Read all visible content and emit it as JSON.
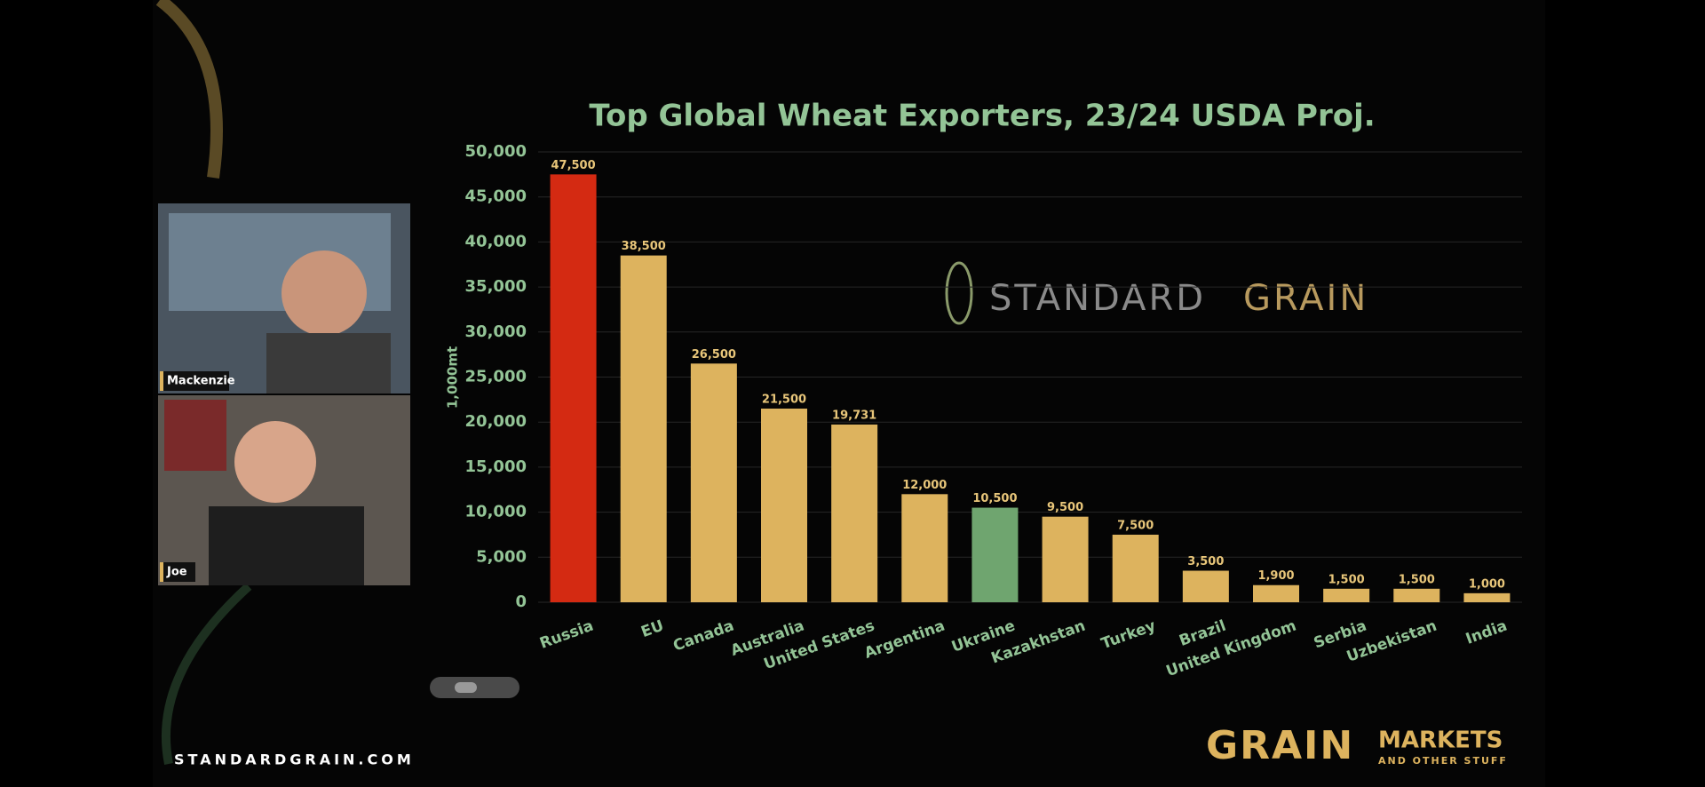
{
  "chart_data": {
    "type": "bar",
    "title": "Top Global Wheat Exporters, 23/24 USDA Proj.",
    "y_label": "1,000mt",
    "categories": [
      "Russia",
      "EU",
      "Canada",
      "Australia",
      "United States",
      "Argentina",
      "Ukraine",
      "Kazakhstan",
      "Turkey",
      "Brazil",
      "United Kingdom",
      "Serbia",
      "Uzbekistan",
      "India"
    ],
    "values": [
      47500,
      38500,
      26500,
      21500,
      19731,
      12000,
      10500,
      9500,
      7500,
      3500,
      1900,
      1500,
      1500,
      1000
    ],
    "value_labels": [
      "47,500",
      "38,500",
      "26,500",
      "21,500",
      "19,731",
      "12,000",
      "10,500",
      "9,500",
      "7,500",
      "3,500",
      "1,900",
      "1,500",
      "1,500",
      "1,000"
    ],
    "colors": [
      "#d42a12",
      "#ddb35e",
      "#ddb35e",
      "#ddb35e",
      "#ddb35e",
      "#ddb35e",
      "#6fa56f",
      "#ddb35e",
      "#ddb35e",
      "#ddb35e",
      "#ddb35e",
      "#ddb35e",
      "#ddb35e",
      "#ddb35e"
    ],
    "ylim": [
      0,
      50000
    ],
    "yticks": [
      0,
      {
        "value": 5000,
        "label": "5,000"
      },
      {
        "value": 10000,
        "label": "10,000"
      },
      {
        "value": 15000,
        "label": "15,000"
      },
      {
        "value": 20000,
        "label": "20,000"
      },
      {
        "value": 25000,
        "label": "25,000"
      },
      {
        "value": 30000,
        "label": "30,000"
      },
      {
        "value": 35000,
        "label": "35,000"
      },
      {
        "value": 40000,
        "label": "40,000"
      },
      {
        "value": 45000,
        "label": "45,000"
      },
      {
        "value": 50000,
        "label": "50,000"
      }
    ],
    "grid": true
  },
  "watermark": {
    "left": "STANDARD",
    "right": "GRAIN"
  },
  "participants": [
    "Mackenzie",
    "Joe"
  ],
  "footer": "STANDARDGRAIN.COM",
  "logo": {
    "grain": "GRAIN",
    "markets": "MARKETS",
    "tagline": "AND OTHER STUFF"
  }
}
